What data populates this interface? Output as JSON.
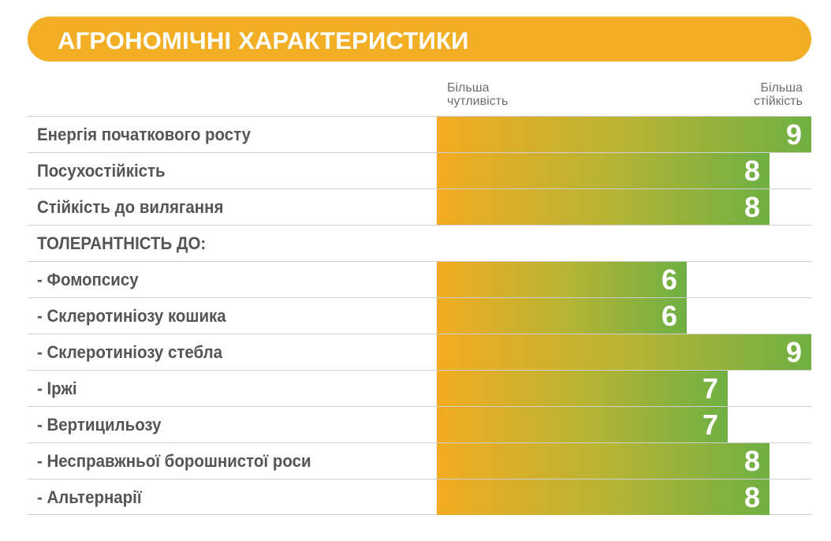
{
  "header": {
    "title": "АГРОНОМІЧНІ ХАРАКТЕРИСТИКИ"
  },
  "scale": {
    "left_line1": "Більша",
    "left_line2": "чутливість",
    "right_line1": "Більша",
    "right_line2": "стійкість"
  },
  "colors": {
    "header": "#f2ae25",
    "bar_start": "#f3ab22",
    "bar_end": "#6fb043",
    "label_text": "#555557",
    "scale_text": "#6d6e71"
  },
  "chart_data": {
    "type": "bar",
    "orientation": "horizontal",
    "xlim": [
      0,
      9
    ],
    "title": "АГРОНОМІЧНІ ХАРАКТЕРИСТИКИ",
    "rows": [
      {
        "label": "Енергія початкового росту",
        "value": 9
      },
      {
        "label": "Посухостійкість",
        "value": 8
      },
      {
        "label": "Стійкість до вилягання",
        "value": 8
      },
      {
        "label": "ТОЛЕРАНТНІСТЬ ДО:",
        "value": null
      },
      {
        "label": "- Фомопсису",
        "value": 6
      },
      {
        "label": "- Склеротиніозу кошика",
        "value": 6
      },
      {
        "label": "- Склеротиніозу стебла",
        "value": 9
      },
      {
        "label": "- Іржі",
        "value": 7
      },
      {
        "label": "- Вертицильозу",
        "value": 7
      },
      {
        "label": "- Несправжньої борошнистої роси",
        "value": 8
      },
      {
        "label": "- Альтернарії",
        "value": 8
      }
    ]
  }
}
